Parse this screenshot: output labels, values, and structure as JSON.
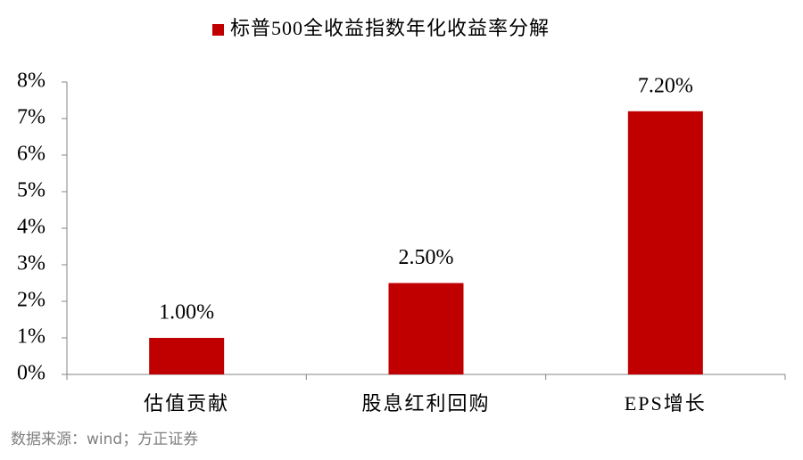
{
  "chart_data": {
    "type": "bar",
    "categories": [
      "估值贡献",
      "股息红利回购",
      "EPS增长"
    ],
    "series": [
      {
        "name": "标普500全收益指数年化收益率分解",
        "color": "#c00000",
        "values": [
          1.0,
          2.5,
          7.2
        ],
        "value_labels": [
          "1.00%",
          "2.50%",
          "7.20%"
        ]
      }
    ],
    "ylim": [
      0,
      8
    ],
    "yticks": [
      {
        "value": 0,
        "label": "0%"
      },
      {
        "value": 1,
        "label": "1%"
      },
      {
        "value": 2,
        "label": "2%"
      },
      {
        "value": 3,
        "label": "3%"
      },
      {
        "value": 4,
        "label": "4%"
      },
      {
        "value": 5,
        "label": "5%"
      },
      {
        "value": 6,
        "label": "6%"
      },
      {
        "value": 7,
        "label": "7%"
      },
      {
        "value": 8,
        "label": "8%"
      }
    ],
    "legend_position": "top",
    "source": "数据来源：wind；方正证券"
  }
}
